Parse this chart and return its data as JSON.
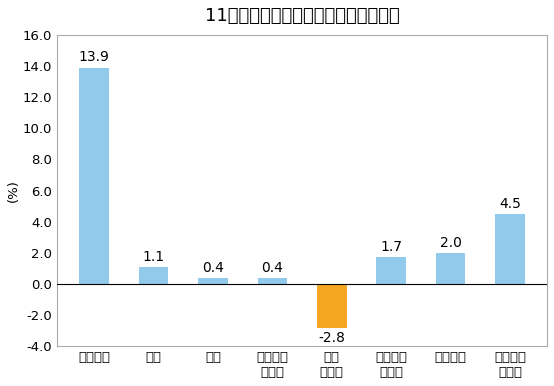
{
  "title": "11月份居民消费价格分类别同比涨跌幅",
  "ylabel": "(%)",
  "categories": [
    "食品烟酒",
    "衣着",
    "居住",
    "生活用品\n及服务",
    "交通\n和通信",
    "教育文化\n和娱乐",
    "医疗保健",
    "其他用品\n和服务"
  ],
  "values": [
    13.9,
    1.1,
    0.4,
    0.4,
    -2.8,
    1.7,
    2.0,
    4.5
  ],
  "bar_colors": [
    "#92CAEC",
    "#92CAEC",
    "#92CAEC",
    "#92CAEC",
    "#F5A623",
    "#92CAEC",
    "#92CAEC",
    "#92CAEC"
  ],
  "ylim": [
    -4.0,
    16.0
  ],
  "yticks": [
    -4.0,
    -2.0,
    0.0,
    2.0,
    4.0,
    6.0,
    8.0,
    10.0,
    12.0,
    14.0,
    16.0
  ],
  "background_color": "#ffffff",
  "plot_bg_color": "#ffffff",
  "title_fontsize": 13,
  "label_fontsize": 10,
  "tick_fontsize": 9.5,
  "bar_width": 0.5
}
